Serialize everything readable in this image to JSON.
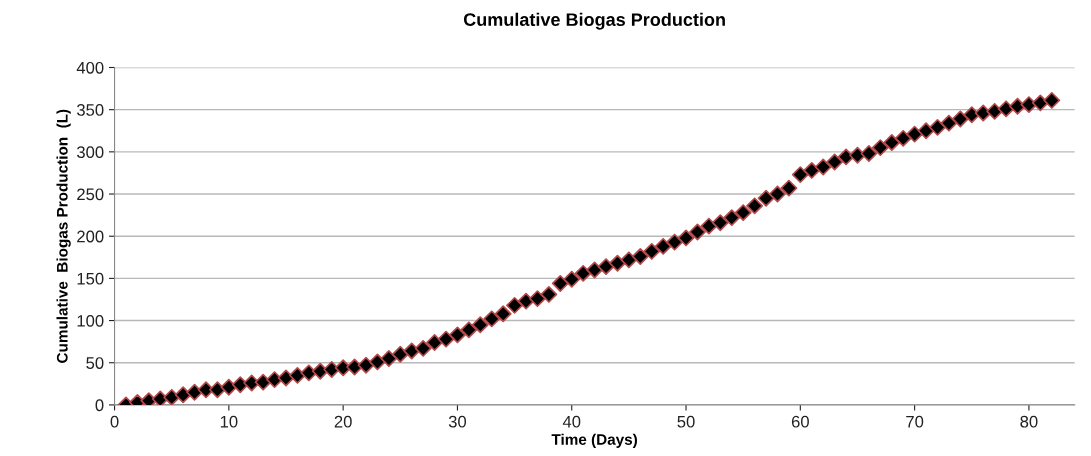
{
  "chart_data": {
    "type": "scatter",
    "title": "Cumulative Biogas Production",
    "xlabel": "Time (Days)",
    "ylabel": "Cumulative  Biogas Production  (L)",
    "x": [
      1,
      2,
      3,
      4,
      5,
      6,
      7,
      8,
      9,
      10,
      11,
      12,
      13,
      14,
      15,
      16,
      17,
      18,
      19,
      20,
      21,
      22,
      23,
      24,
      25,
      26,
      27,
      28,
      29,
      30,
      31,
      32,
      33,
      34,
      35,
      36,
      37,
      38,
      39,
      40,
      41,
      42,
      43,
      44,
      45,
      46,
      47,
      48,
      49,
      50,
      51,
      52,
      53,
      54,
      55,
      56,
      57,
      58,
      59,
      60,
      61,
      62,
      63,
      64,
      65,
      66,
      67,
      68,
      69,
      70,
      71,
      72,
      73,
      74,
      75,
      76,
      77,
      78,
      79,
      80,
      81,
      82
    ],
    "series": [
      {
        "color": "#000000",
        "values": [
          0,
          3,
          5,
          7,
          9,
          12,
          15,
          18,
          18,
          21,
          24,
          26,
          27,
          30,
          32,
          35,
          38,
          40,
          42,
          44,
          45,
          47,
          51,
          55,
          60,
          64,
          67,
          74,
          78,
          83,
          89,
          95,
          102,
          108,
          118,
          123,
          126,
          131,
          144,
          149,
          156,
          160,
          164,
          168,
          172,
          176,
          182,
          188,
          193,
          198,
          205,
          212,
          216,
          222,
          228,
          236,
          245,
          250,
          257,
          273,
          278,
          282,
          288,
          294,
          296,
          298,
          305,
          311,
          316,
          321,
          325,
          329,
          334,
          339,
          344,
          346,
          348,
          351,
          354,
          356,
          358,
          361
        ]
      }
    ],
    "marker": "diamond",
    "xlim": [
      0,
      84
    ],
    "xticks": [
      0,
      10,
      20,
      30,
      40,
      50,
      60,
      70,
      80
    ],
    "ylim": [
      0,
      400
    ],
    "yticks": [
      0,
      50,
      100,
      150,
      200,
      250,
      300,
      350,
      400
    ],
    "grid": "y",
    "legend": false
  }
}
